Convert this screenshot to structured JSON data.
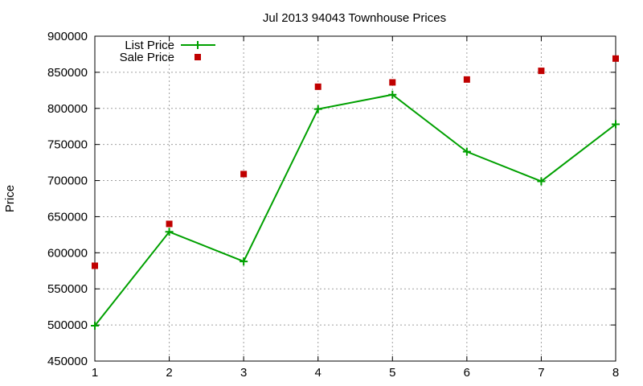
{
  "chart_data": {
    "type": "line",
    "title": "Jul 2013 94043 Townhouse Prices",
    "xlabel": "",
    "ylabel": "Price",
    "x": [
      1,
      2,
      3,
      4,
      5,
      6,
      7,
      8
    ],
    "xlim": [
      1,
      8
    ],
    "ylim": [
      450000,
      900000
    ],
    "xticks": [
      "1",
      "2",
      "3",
      "4",
      "5",
      "6",
      "7",
      "8"
    ],
    "yticks": [
      "450000",
      "500000",
      "550000",
      "600000",
      "650000",
      "700000",
      "750000",
      "800000",
      "850000",
      "900000"
    ],
    "grid": true,
    "legend_position": "top-left",
    "series": [
      {
        "name": "List Price",
        "style": "line-with-plus-markers",
        "color": "#00a000",
        "values": [
          499000,
          629000,
          588000,
          799000,
          819000,
          740000,
          699000,
          778000
        ]
      },
      {
        "name": "Sale Price",
        "style": "square-markers",
        "color": "#c00000",
        "values": [
          582000,
          640000,
          709000,
          830000,
          836000,
          840000,
          852000,
          869000
        ]
      }
    ]
  }
}
